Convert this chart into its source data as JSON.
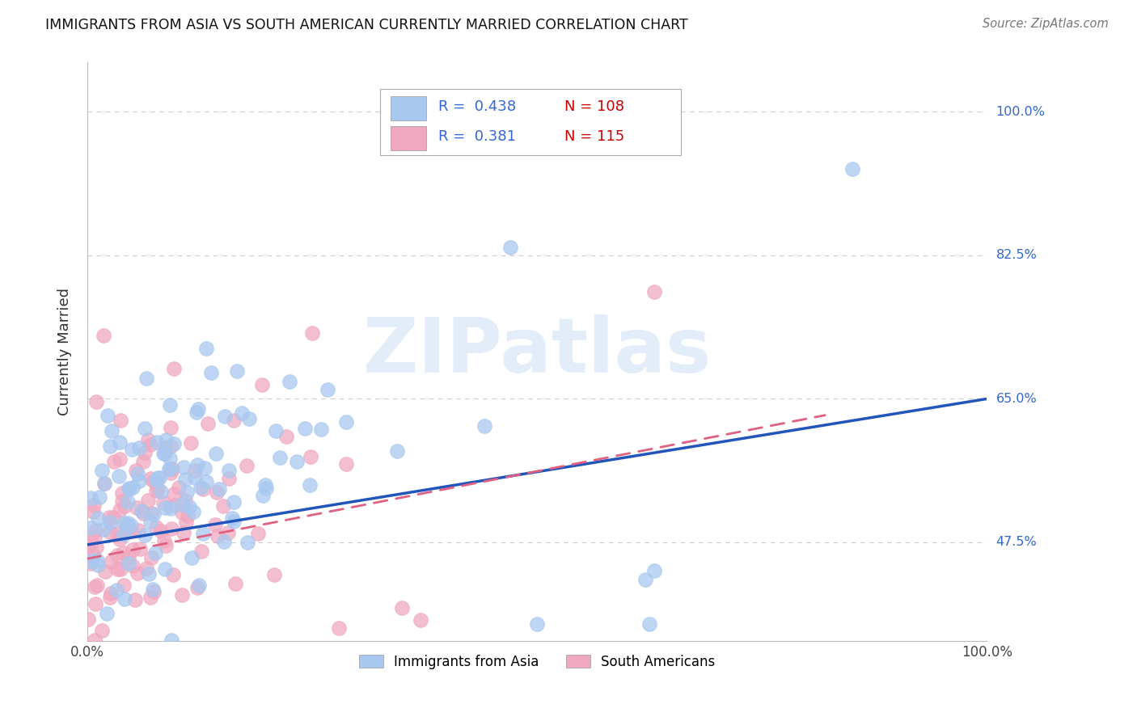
{
  "title": "IMMIGRANTS FROM ASIA VS SOUTH AMERICAN CURRENTLY MARRIED CORRELATION CHART",
  "source": "Source: ZipAtlas.com",
  "ylabel": "Currently Married",
  "ytick_vals": [
    0.475,
    0.65,
    0.825,
    1.0
  ],
  "ytick_labels": [
    "47.5%",
    "65.0%",
    "82.5%",
    "100.0%"
  ],
  "xlim": [
    0.0,
    1.0
  ],
  "ylim": [
    0.355,
    1.06
  ],
  "legend_asia_r": "0.438",
  "legend_asia_n": "108",
  "legend_sa_r": "0.381",
  "legend_sa_n": "115",
  "color_asia": "#a8c8f0",
  "color_sa": "#f0a8c0",
  "color_asia_line": "#2255bb",
  "color_sa_line": "#e06080",
  "watermark": "ZIPatlas",
  "background_color": "#ffffff",
  "grid_color": "#cccccc",
  "asia_line_x0": 0.0,
  "asia_line_y0": 0.472,
  "asia_line_x1": 1.0,
  "asia_line_y1": 0.65,
  "sa_line_x0": 0.0,
  "sa_line_y0": 0.455,
  "sa_line_x1": 0.82,
  "sa_line_y1": 0.63
}
